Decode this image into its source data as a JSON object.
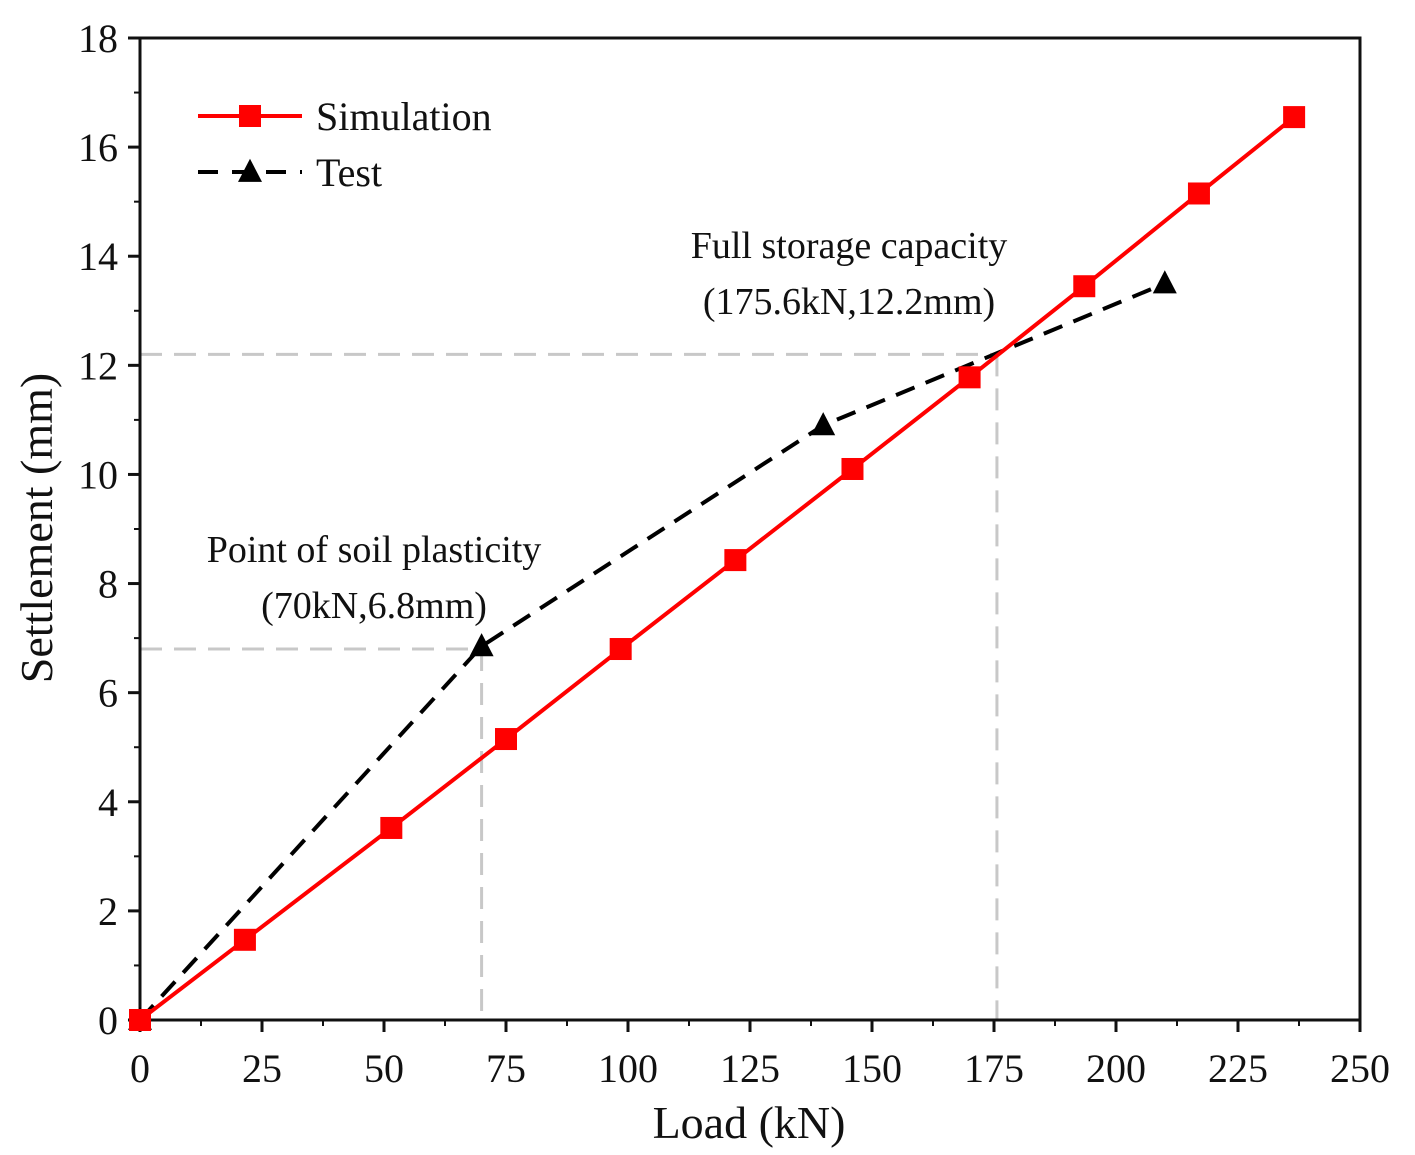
{
  "chart_data": {
    "type": "line",
    "title": "",
    "xlabel": "Load (kN)",
    "ylabel": "Settlement (mm)",
    "xlim": [
      0,
      250
    ],
    "ylim": [
      0,
      18
    ],
    "xticks": [
      0,
      25,
      50,
      75,
      100,
      125,
      150,
      175,
      200,
      225,
      250
    ],
    "yticks": [
      0,
      2,
      4,
      6,
      8,
      10,
      12,
      14,
      16,
      18
    ],
    "grid": false,
    "legend_position": "top-left",
    "series": [
      {
        "name": "Simulation",
        "color": "#ff0000",
        "line_style": "solid",
        "marker": "square",
        "x": [
          0,
          21.5,
          51.5,
          75,
          98.5,
          122,
          146,
          170,
          193.5,
          217,
          236.5
        ],
        "y": [
          0,
          1.47,
          3.52,
          5.15,
          6.8,
          8.43,
          10.1,
          11.78,
          13.45,
          15.15,
          16.55
        ]
      },
      {
        "name": "Test",
        "color": "#000000",
        "line_style": "dashed",
        "marker": "triangle",
        "x": [
          0,
          70,
          140,
          210
        ],
        "y": [
          0,
          6.85,
          10.9,
          13.5
        ]
      }
    ],
    "reference_lines": [
      {
        "x": 70,
        "y": 6.8,
        "color": "#c8c8c8"
      },
      {
        "x": 175.6,
        "y": 12.2,
        "color": "#c8c8c8"
      }
    ],
    "annotations": [
      {
        "lines": [
          "Point of soil plasticity",
          "(70kN,6.8mm)"
        ],
        "x": 70,
        "y": 6.8
      },
      {
        "lines": [
          "Full storage capacity",
          "(175.6kN,12.2mm)"
        ],
        "x": 175.6,
        "y": 12.2
      }
    ]
  }
}
